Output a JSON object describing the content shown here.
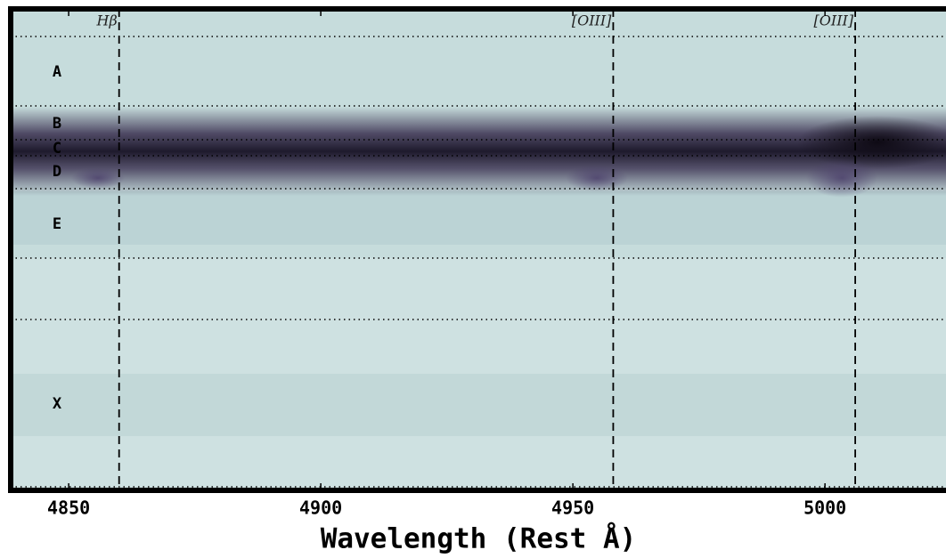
{
  "chart_data": {
    "type": "spectrum2d",
    "xlabel": "Wavelength (Rest Å)",
    "xlim": [
      4838.5,
      5024
    ],
    "xticks": [
      4850,
      4900,
      4950,
      5000
    ],
    "lines": [
      {
        "label": "Hβ",
        "x": 4860
      },
      {
        "label": "[OIII]",
        "x": 4958
      },
      {
        "label": "[OIII]",
        "x": 5006
      }
    ],
    "regions": [
      "A",
      "B",
      "C",
      "D",
      "E",
      "X"
    ]
  }
}
